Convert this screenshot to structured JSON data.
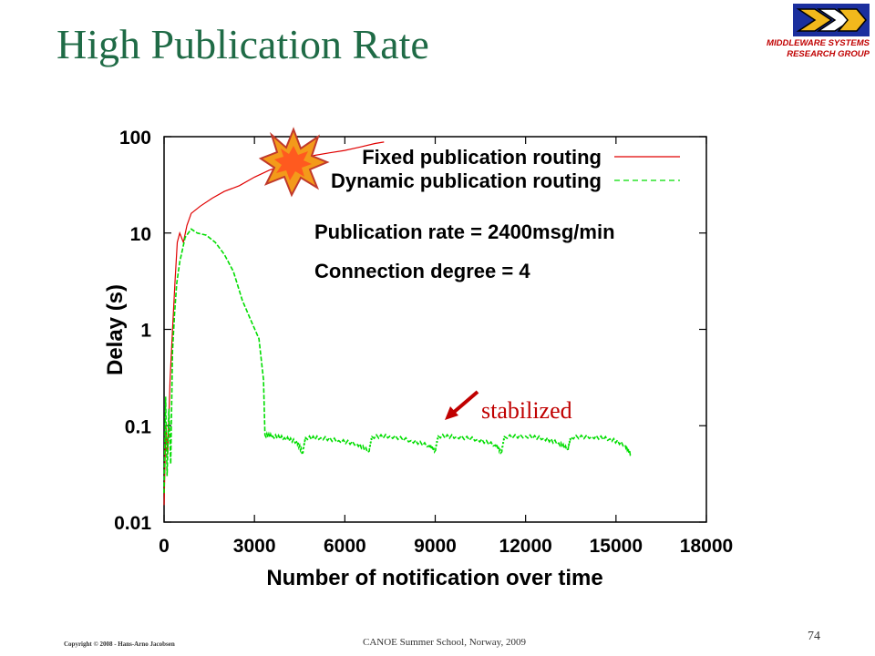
{
  "slide": {
    "title": "High Publication Rate",
    "logo_lines": [
      "MIDDLEWARE SYSTEMS",
      "RESEARCH GROUP"
    ],
    "footer_copyright": "Copyright © 2008 - Hans-Arno Jacobsen",
    "footer_center": "CANOE Summer School, Norway, 2009",
    "page_number": "74"
  },
  "chart_data": {
    "type": "line",
    "xlabel": "Number of notification over time",
    "ylabel": "Delay (s)",
    "xlim": [
      0,
      18000
    ],
    "ylim": [
      0.01,
      100
    ],
    "yscale": "log",
    "x_ticks": [
      "0",
      "3000",
      "6000",
      "9000",
      "12000",
      "15000",
      "18000"
    ],
    "y_ticks": [
      "0.01",
      "0.1",
      "1",
      "10",
      "100"
    ],
    "legend_position": "top-right",
    "annotations": [
      "Publication rate = 2400msg/min",
      "Connection degree = 4"
    ],
    "callout": "stabilized",
    "series": [
      {
        "name": "Fixed publication routing",
        "color": "#e00000",
        "style": "solid",
        "points": [
          [
            0,
            0.015
          ],
          [
            60,
            0.1
          ],
          [
            120,
            0.05
          ],
          [
            200,
            0.3
          ],
          [
            280,
            1
          ],
          [
            360,
            3
          ],
          [
            440,
            8
          ],
          [
            520,
            10
          ],
          [
            640,
            8
          ],
          [
            760,
            12
          ],
          [
            900,
            16
          ],
          [
            1200,
            19
          ],
          [
            1600,
            23
          ],
          [
            2000,
            27
          ],
          [
            2500,
            31
          ],
          [
            3000,
            38
          ],
          [
            3500,
            45
          ],
          [
            4000,
            51
          ],
          [
            4500,
            58
          ],
          [
            5000,
            64
          ],
          [
            5500,
            68
          ],
          [
            6000,
            72
          ],
          [
            6500,
            78
          ],
          [
            7000,
            85
          ],
          [
            7300,
            88
          ]
        ]
      },
      {
        "name": "Dynamic publication routing",
        "color": "#00dd00",
        "style": "dashed",
        "points": [
          [
            0,
            0.02
          ],
          [
            50,
            0.2
          ],
          [
            100,
            0.03
          ],
          [
            160,
            0.15
          ],
          [
            220,
            0.04
          ],
          [
            280,
            0.6
          ],
          [
            350,
            1.5
          ],
          [
            420,
            3
          ],
          [
            520,
            5
          ],
          [
            700,
            9
          ],
          [
            900,
            11
          ],
          [
            1100,
            10
          ],
          [
            1400,
            9.5
          ],
          [
            1700,
            8
          ],
          [
            2000,
            6
          ],
          [
            2300,
            4
          ],
          [
            2600,
            2
          ],
          [
            2900,
            1.2
          ],
          [
            3150,
            0.8
          ],
          [
            3300,
            0.3
          ],
          [
            3350,
            0.08
          ],
          [
            3600,
            0.078
          ],
          [
            4000,
            0.075
          ],
          [
            4400,
            0.068
          ],
          [
            4600,
            0.052
          ],
          [
            4700,
            0.075
          ],
          [
            5200,
            0.075
          ],
          [
            5800,
            0.07
          ],
          [
            6400,
            0.065
          ],
          [
            6800,
            0.054
          ],
          [
            6900,
            0.077
          ],
          [
            7500,
            0.078
          ],
          [
            8200,
            0.07
          ],
          [
            8800,
            0.062
          ],
          [
            9000,
            0.055
          ],
          [
            9100,
            0.078
          ],
          [
            9700,
            0.077
          ],
          [
            10400,
            0.072
          ],
          [
            11000,
            0.063
          ],
          [
            11200,
            0.053
          ],
          [
            11300,
            0.077
          ],
          [
            12000,
            0.078
          ],
          [
            12600,
            0.074
          ],
          [
            13100,
            0.066
          ],
          [
            13400,
            0.057
          ],
          [
            13500,
            0.076
          ],
          [
            14200,
            0.077
          ],
          [
            14800,
            0.073
          ],
          [
            15300,
            0.063
          ],
          [
            15500,
            0.05
          ]
        ]
      }
    ]
  }
}
